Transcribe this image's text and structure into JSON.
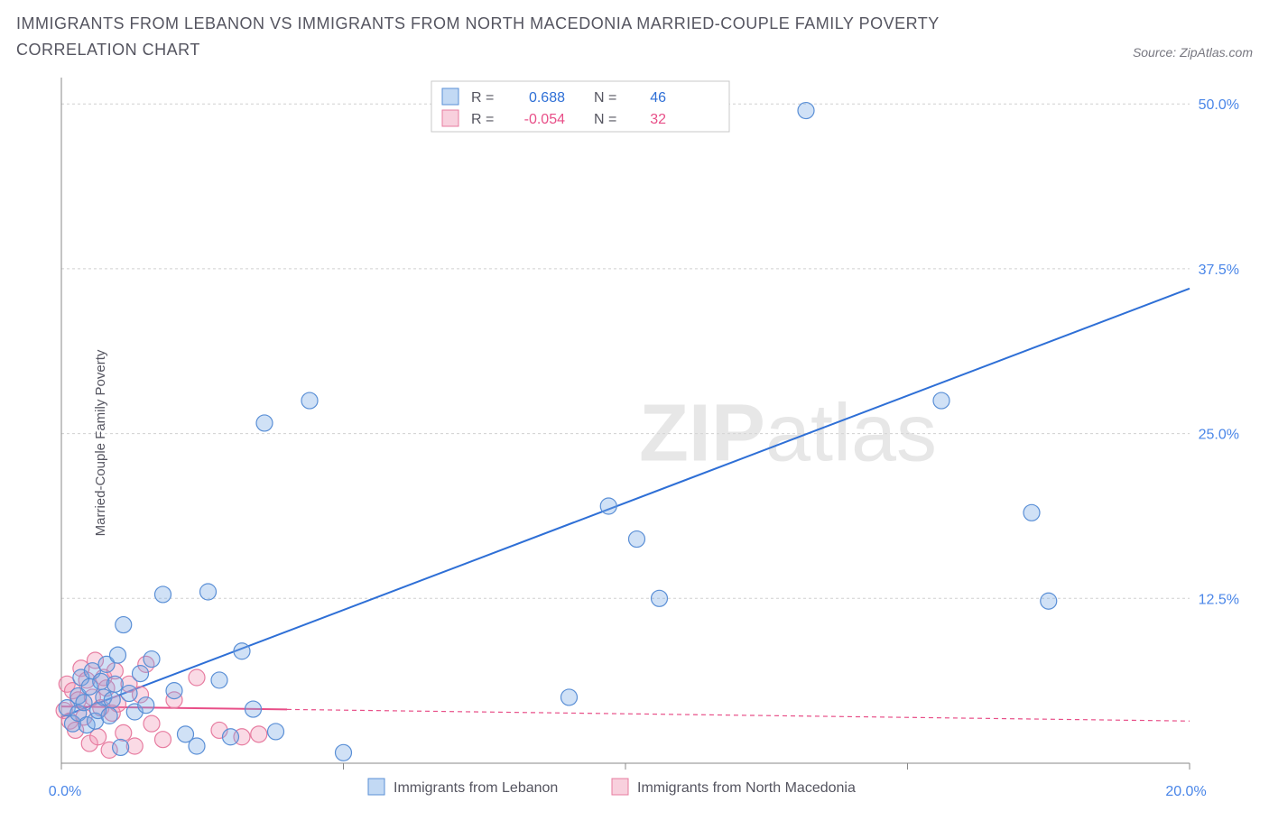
{
  "title": "IMMIGRANTS FROM LEBANON VS IMMIGRANTS FROM NORTH MACEDONIA MARRIED-COUPLE FAMILY POVERTY CORRELATION CHART",
  "source_label": "Source: ZipAtlas.com",
  "ylabel": "Married-Couple Family Poverty",
  "watermark_bold": "ZIP",
  "watermark_rest": "atlas",
  "chart": {
    "type": "scatter",
    "xlim": [
      0,
      20
    ],
    "ylim": [
      0,
      52
    ],
    "x_ticks": [
      0,
      5,
      10,
      15,
      20
    ],
    "x_tick_labels": [
      "0.0%",
      "",
      "",
      "",
      "20.0%"
    ],
    "y_ticks": [
      12.5,
      25.0,
      37.5,
      50.0
    ],
    "y_tick_labels": [
      "12.5%",
      "25.0%",
      "37.5%",
      "50.0%"
    ],
    "grid_color": "#d0d0d0",
    "background_color": "#ffffff",
    "marker_radius": 9,
    "series": [
      {
        "key": "lebanon",
        "label": "Immigrants from Lebanon",
        "color_fill": "rgba(120,170,230,0.35)",
        "color_stroke": "#5a8fd6",
        "trend_color": "#2e6fd6",
        "R": "0.688",
        "N": "46",
        "trend": {
          "x1": 0,
          "y1": 3.5,
          "x2": 20,
          "y2": 36.0,
          "solid_until_x": 20
        },
        "points": [
          [
            0.1,
            4.2
          ],
          [
            0.2,
            3.0
          ],
          [
            0.3,
            5.1
          ],
          [
            0.3,
            3.8
          ],
          [
            0.35,
            6.5
          ],
          [
            0.4,
            4.6
          ],
          [
            0.45,
            2.9
          ],
          [
            0.5,
            5.8
          ],
          [
            0.55,
            7.0
          ],
          [
            0.6,
            3.2
          ],
          [
            0.65,
            4.0
          ],
          [
            0.7,
            6.2
          ],
          [
            0.75,
            5.0
          ],
          [
            0.8,
            7.5
          ],
          [
            0.85,
            3.6
          ],
          [
            0.9,
            4.8
          ],
          [
            0.95,
            6.0
          ],
          [
            1.0,
            8.2
          ],
          [
            1.05,
            1.2
          ],
          [
            1.1,
            10.5
          ],
          [
            1.2,
            5.3
          ],
          [
            1.3,
            3.9
          ],
          [
            1.4,
            6.8
          ],
          [
            1.5,
            4.4
          ],
          [
            1.6,
            7.9
          ],
          [
            1.8,
            12.8
          ],
          [
            2.0,
            5.5
          ],
          [
            2.2,
            2.2
          ],
          [
            2.4,
            1.3
          ],
          [
            2.6,
            13.0
          ],
          [
            2.8,
            6.3
          ],
          [
            3.0,
            2.0
          ],
          [
            3.2,
            8.5
          ],
          [
            3.4,
            4.1
          ],
          [
            3.6,
            25.8
          ],
          [
            3.8,
            2.4
          ],
          [
            4.4,
            27.5
          ],
          [
            5.0,
            0.8
          ],
          [
            9.0,
            5.0
          ],
          [
            9.7,
            19.5
          ],
          [
            10.2,
            17.0
          ],
          [
            10.6,
            12.5
          ],
          [
            13.2,
            49.5
          ],
          [
            15.6,
            27.5
          ],
          [
            17.2,
            19.0
          ],
          [
            17.5,
            12.3
          ]
        ]
      },
      {
        "key": "north_macedonia",
        "label": "Immigrants from North Macedonia",
        "color_fill": "rgba(240,150,180,0.35)",
        "color_stroke": "#e77ca0",
        "trend_color": "#e84f88",
        "R": "-0.054",
        "N": "32",
        "trend": {
          "x1": 0,
          "y1": 4.3,
          "x2": 20,
          "y2": 3.2,
          "solid_until_x": 4.0
        },
        "points": [
          [
            0.05,
            4.0
          ],
          [
            0.1,
            6.0
          ],
          [
            0.15,
            3.2
          ],
          [
            0.2,
            5.5
          ],
          [
            0.25,
            2.5
          ],
          [
            0.3,
            4.8
          ],
          [
            0.35,
            7.2
          ],
          [
            0.4,
            3.5
          ],
          [
            0.45,
            6.3
          ],
          [
            0.5,
            1.5
          ],
          [
            0.55,
            5.0
          ],
          [
            0.6,
            7.8
          ],
          [
            0.65,
            2.0
          ],
          [
            0.7,
            4.2
          ],
          [
            0.75,
            6.5
          ],
          [
            0.8,
            5.7
          ],
          [
            0.85,
            1.0
          ],
          [
            0.9,
            3.8
          ],
          [
            0.95,
            7.0
          ],
          [
            1.0,
            4.5
          ],
          [
            1.1,
            2.3
          ],
          [
            1.2,
            6.0
          ],
          [
            1.3,
            1.3
          ],
          [
            1.4,
            5.2
          ],
          [
            1.5,
            7.5
          ],
          [
            1.6,
            3.0
          ],
          [
            1.8,
            1.8
          ],
          [
            2.0,
            4.8
          ],
          [
            2.4,
            6.5
          ],
          [
            2.8,
            2.5
          ],
          [
            3.2,
            2.0
          ],
          [
            3.5,
            2.2
          ]
        ]
      }
    ]
  },
  "legend_stats": {
    "r_label": "R =",
    "n_label": "N ="
  }
}
